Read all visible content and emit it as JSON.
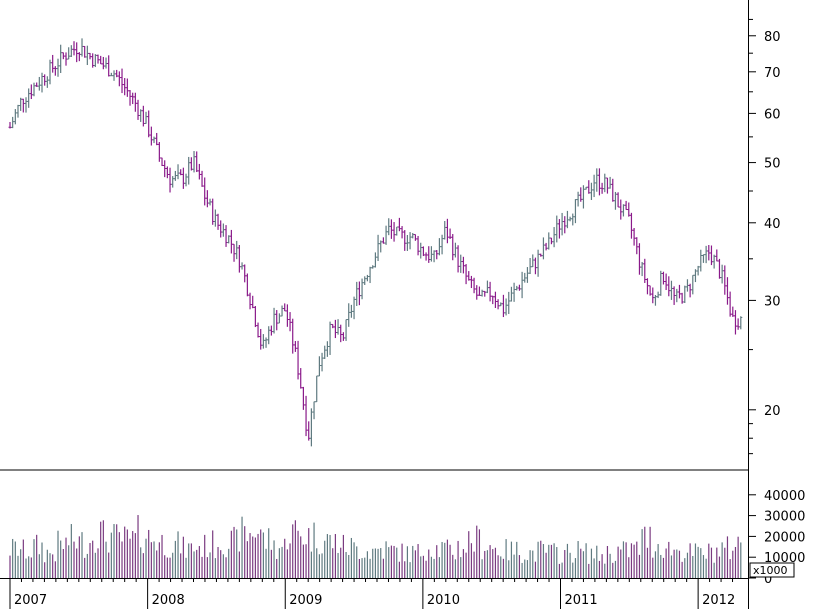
{
  "chart_data": [
    {
      "type": "ohlc",
      "panel": "price",
      "scale": "log",
      "ylim": [
        16,
        90
      ],
      "yticks": [
        "20",
        "30",
        "40",
        "50",
        "60",
        "70",
        "80"
      ],
      "colors": {
        "up": "#5f7a80",
        "down": "#8a1a8a"
      },
      "grid": false,
      "x": [
        "2007-01",
        "2007-02",
        "2007-03",
        "2007-04",
        "2007-05",
        "2007-06",
        "2007-07",
        "2007-08",
        "2007-09",
        "2007-10",
        "2007-11",
        "2007-12",
        "2008-01",
        "2008-02",
        "2008-03",
        "2008-04",
        "2008-05",
        "2008-06",
        "2008-07",
        "2008-08",
        "2008-09",
        "2008-10",
        "2008-11",
        "2008-12",
        "2009-01",
        "2009-02",
        "2009-03",
        "2009-04",
        "2009-05",
        "2009-06",
        "2009-07",
        "2009-08",
        "2009-09",
        "2009-10",
        "2009-11",
        "2009-12",
        "2010-01",
        "2010-02",
        "2010-03",
        "2010-04",
        "2010-05",
        "2010-06",
        "2010-07",
        "2010-08",
        "2010-09",
        "2010-10",
        "2010-11",
        "2010-12",
        "2011-01",
        "2011-02",
        "2011-03",
        "2011-04",
        "2011-05",
        "2011-06",
        "2011-07",
        "2011-08",
        "2011-09",
        "2011-10",
        "2011-11",
        "2011-12",
        "2012-01",
        "2012-02",
        "2012-03",
        "2012-04"
      ],
      "close": [
        57,
        63,
        66,
        69,
        72,
        75,
        77,
        74,
        72,
        70,
        66,
        62,
        57,
        51,
        47,
        47,
        50,
        44,
        40,
        38,
        35,
        30,
        25,
        28,
        29,
        24,
        18,
        24,
        27,
        26,
        30,
        33,
        36,
        39,
        38,
        38,
        36,
        35,
        39,
        35,
        32,
        30,
        31,
        29,
        31,
        33,
        35,
        37,
        40,
        42,
        44,
        47,
        46,
        43,
        40,
        34,
        30,
        33,
        30,
        31,
        34,
        36,
        33,
        28
      ]
    },
    {
      "type": "bar",
      "panel": "volume",
      "unit": "x1000",
      "ylim": [
        0,
        50000
      ],
      "yticks": [
        "0",
        "10000",
        "20000",
        "30000",
        "40000"
      ],
      "colors": {
        "bar": "#7a3a80"
      },
      "values": [
        14000,
        13000,
        15000,
        12000,
        16000,
        18000,
        17000,
        22000,
        20000,
        19000,
        18000,
        21000,
        19000,
        17000,
        16000,
        14000,
        15000,
        16000,
        18000,
        17000,
        21000,
        23000,
        18000,
        15000,
        22000,
        21000,
        20000,
        18000,
        17000,
        15000,
        14000,
        13000,
        14000,
        13000,
        12000,
        12000,
        15000,
        14000,
        13000,
        15000,
        18000,
        16000,
        14000,
        13000,
        13000,
        12000,
        13000,
        12000,
        12000,
        13000,
        12000,
        11000,
        12000,
        13000,
        14000,
        19000,
        16000,
        14000,
        13000,
        12000,
        12000,
        13000,
        14000,
        16000
      ]
    }
  ],
  "time_axis": [
    "2007",
    "2008",
    "2009",
    "2010",
    "2011",
    "2012"
  ],
  "volume_unit_label": "x1000"
}
